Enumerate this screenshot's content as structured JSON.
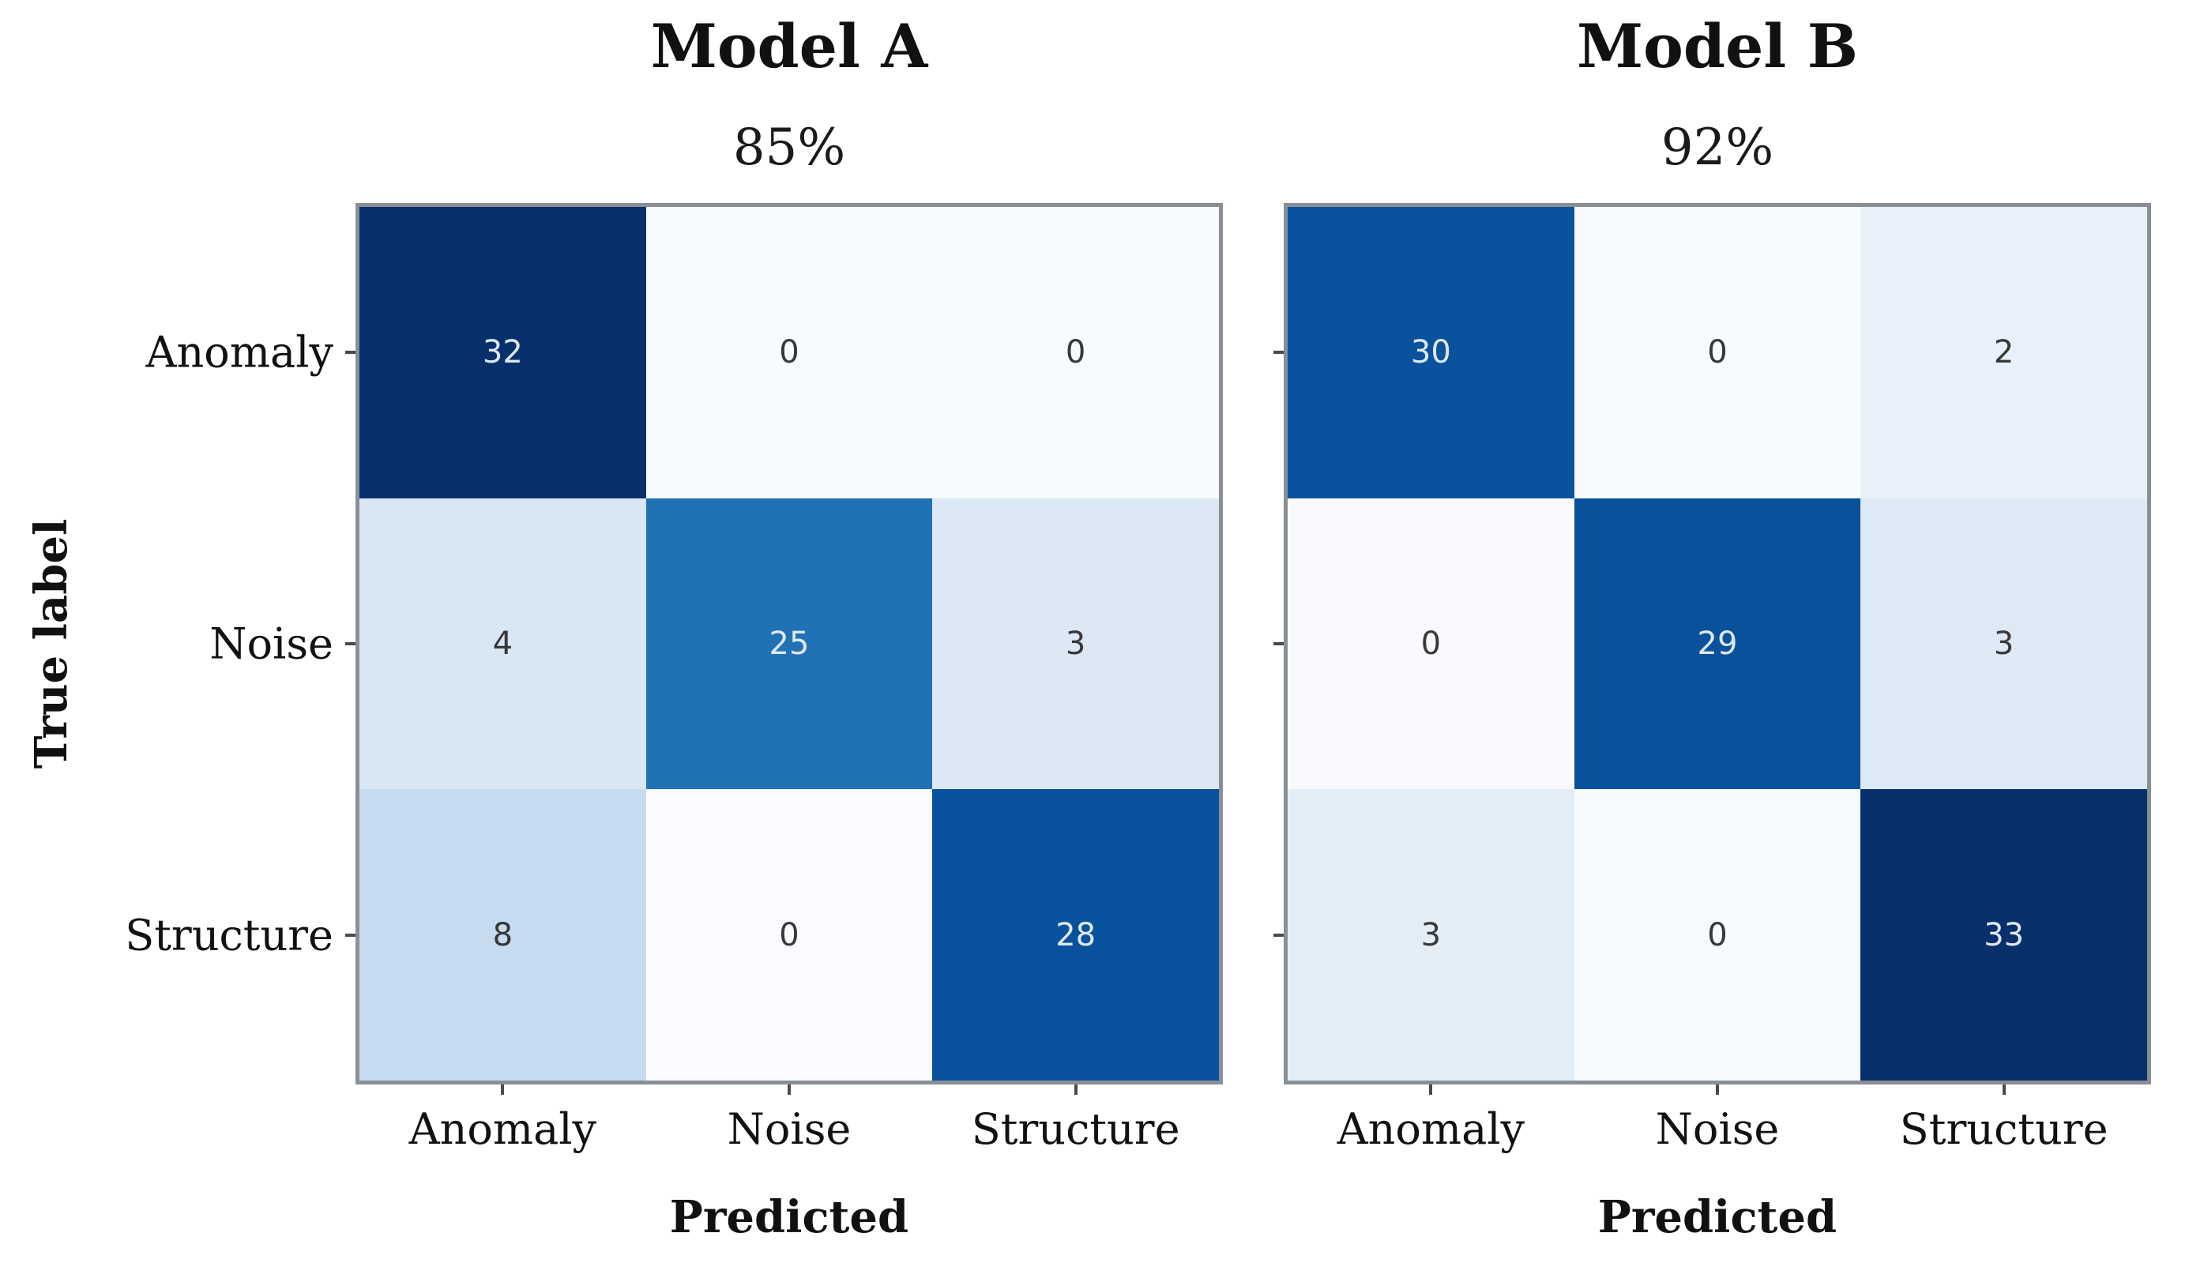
{
  "style": {
    "background": "#ffffff",
    "spine_color": "#8a8f96",
    "tick_color": "#4a4a4a",
    "dark_cell_text_color": "#dfe7f1",
    "light_cell_text_color": "#383838"
  },
  "panels": [
    {
      "id": "a",
      "cell_colors": [
        [
          "#08306b",
          "#f7fbff",
          "#f7fbff"
        ],
        [
          "#d9e6f3",
          "#2171b5",
          "#dce8f4"
        ],
        [
          "#c6dbef",
          "#f9fbfe",
          "#08519c"
        ]
      ]
    },
    {
      "id": "b",
      "cell_colors": [
        [
          "#0b529e",
          "#f7fbff",
          "#e8f0f9"
        ],
        [
          "#f8fafd",
          "#0a519c",
          "#dde9f4"
        ],
        [
          "#e3edf6",
          "#f8fbfe",
          "#08306b"
        ]
      ]
    }
  ],
  "chart_data": [
    {
      "type": "heatmap",
      "title": "Model A",
      "subtitle": "85%",
      "xlabel": "Predicted",
      "ylabel": "True label",
      "x_categories": [
        "Anomaly",
        "Noise",
        "Structure"
      ],
      "y_categories": [
        "Anomaly",
        "Noise",
        "Structure"
      ],
      "values": [
        [
          32,
          0,
          0
        ],
        [
          4,
          25,
          3
        ],
        [
          8,
          0,
          28
        ]
      ],
      "colormap": "Blues",
      "value_range": [
        0,
        32
      ],
      "legend": false
    },
    {
      "type": "heatmap",
      "title": "Model B",
      "subtitle": "92%",
      "xlabel": "Predicted",
      "ylabel": "True label",
      "x_categories": [
        "Anomaly",
        "Noise",
        "Structure"
      ],
      "y_categories": [
        "Anomaly",
        "Noise",
        "Structure"
      ],
      "values": [
        [
          30,
          0,
          2
        ],
        [
          0,
          29,
          3
        ],
        [
          3,
          0,
          33
        ]
      ],
      "colormap": "Blues",
      "value_range": [
        0,
        33
      ],
      "legend": false
    }
  ]
}
